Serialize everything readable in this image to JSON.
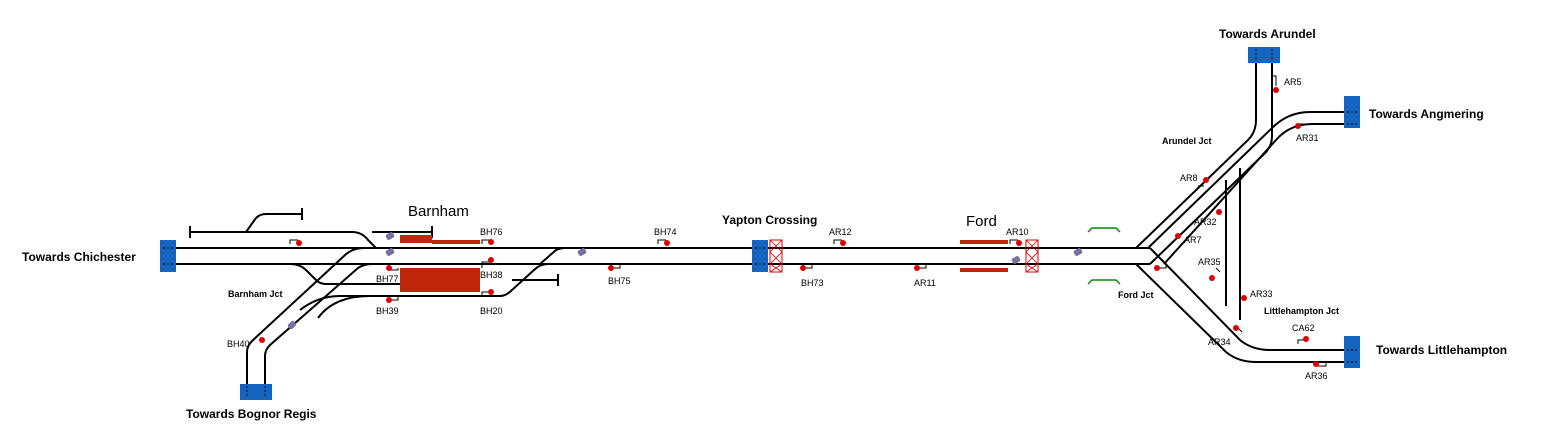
{
  "colors": {
    "track": "#000000",
    "boundary": "#1565c0",
    "platform": "#c1270b",
    "signal": "#e00000",
    "point": "#7a6fa0",
    "crossing": "#e00000",
    "bridge": "#0a8a0a"
  },
  "destinations": {
    "chichester": "Towards Chichester",
    "bognor": "Towards Bognor Regis",
    "arundel": "Towards Arundel",
    "angmering": "Towards Angmering",
    "littlehampton": "Towards Littlehampton"
  },
  "stations": {
    "barnham": "Barnham",
    "ford": "Ford"
  },
  "places": {
    "yapton": "Yapton Crossing",
    "barnham_jct": "Barnham Jct",
    "ford_jct": "Ford Jct",
    "arundel_jct": "Arundel Jct",
    "littlehampton_jct": "Littlehampton Jct"
  },
  "signals": {
    "bh76": "BH76",
    "bh77": "BH77",
    "bh38": "BH38",
    "bh39": "BH39",
    "bh20": "BH20",
    "bh40": "BH40",
    "bh74": "BH74",
    "bh75": "BH75",
    "bh73": "BH73",
    "ar12": "AR12",
    "ar11": "AR11",
    "ar10": "AR10",
    "ar8": "AR8",
    "ar7": "AR7",
    "ar32": "AR32",
    "ar35": "AR35",
    "ar33": "AR33",
    "ar34": "AR34",
    "ar5": "AR5",
    "ar31": "AR31",
    "ca62": "CA62",
    "ar36": "AR36"
  }
}
